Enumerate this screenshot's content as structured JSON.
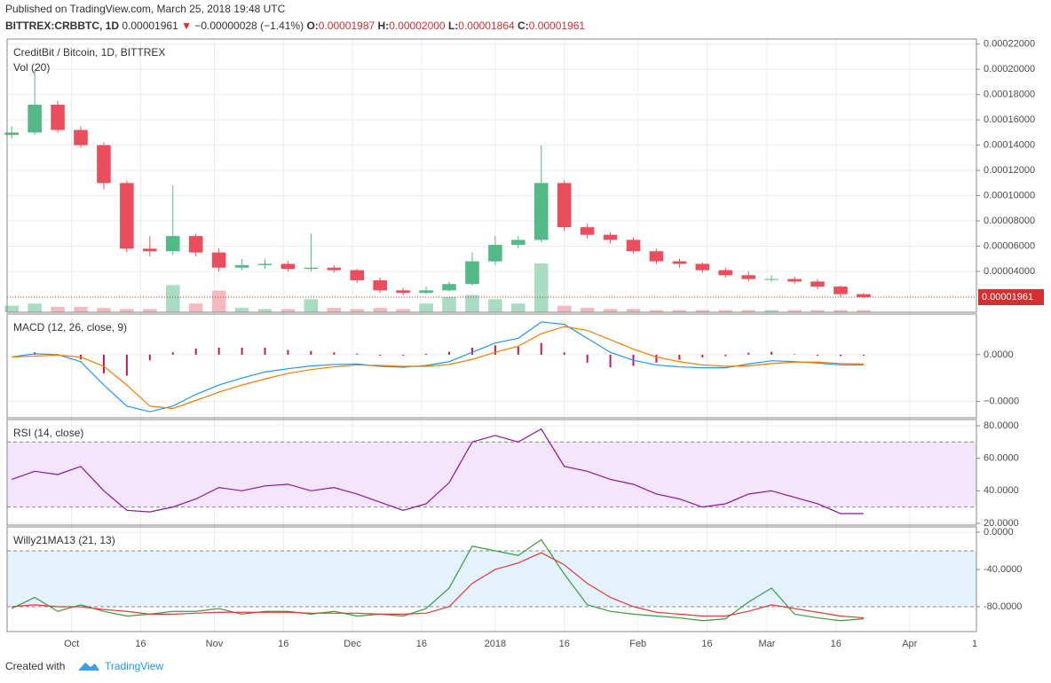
{
  "header": {
    "published": "Published on TradingView.com, March 25, 2018 19:48 UTC",
    "symbol": "BITTREX:CRBBTC, 1D",
    "last": "0.00001961",
    "arrow": "▼",
    "change": "−0.00000028 (−1.41%)",
    "ohlc": [
      {
        "label": "O:",
        "value": "0.00001987"
      },
      {
        "label": "H:",
        "value": "0.00002000"
      },
      {
        "label": "L:",
        "value": "0.00001864"
      },
      {
        "label": "C:",
        "value": "0.00001961"
      }
    ]
  },
  "footer": {
    "created": "Created with",
    "brand": "TradingView"
  },
  "chart_data": [
    {
      "type": "candlestick",
      "title": "CreditBit / Bitcoin, 1D, BITTREX",
      "subtitle": "Vol (20)",
      "x": [
        -13,
        -8,
        -3,
        2,
        7,
        12,
        17,
        22,
        27,
        32,
        37,
        42,
        47,
        52,
        57,
        62,
        67,
        72,
        77,
        82,
        87,
        92,
        97,
        102,
        107,
        112,
        117,
        122,
        127,
        132,
        137,
        142,
        147,
        152,
        157,
        162,
        167,
        172
      ],
      "xlim": [
        -14,
        196.5
      ],
      "xticks": [
        {
          "value": 0,
          "label": "Oct"
        },
        {
          "value": 15,
          "label": "16"
        },
        {
          "value": 31,
          "label": "Nov"
        },
        {
          "value": 46,
          "label": "16"
        },
        {
          "value": 61,
          "label": "Dec"
        },
        {
          "value": 76,
          "label": "16"
        },
        {
          "value": 92,
          "label": "2018"
        },
        {
          "value": 107,
          "label": "16"
        },
        {
          "value": 123,
          "label": "Feb"
        },
        {
          "value": 138,
          "label": "16"
        },
        {
          "value": 151,
          "label": "Mar"
        },
        {
          "value": 166,
          "label": "16"
        },
        {
          "value": 182,
          "label": "Apr"
        },
        {
          "value": 197,
          "label": "1"
        }
      ],
      "open": [
        0.000148,
        0.00015,
        0.000172,
        0.000152,
        0.00014,
        0.00011,
        5.8e-05,
        5.6e-05,
        6.8e-05,
        5.5e-05,
        4.3e-05,
        4.5e-05,
        4.6e-05,
        4.2e-05,
        4.3e-05,
        4.1e-05,
        3.3e-05,
        2.5e-05,
        2.3e-05,
        2.5e-05,
        3e-05,
        4.8e-05,
        6.1e-05,
        6.5e-05,
        0.00011,
        7.5e-05,
        6.9e-05,
        6.5e-05,
        5.6e-05,
        4.8e-05,
        4.6e-05,
        4.1e-05,
        3.7e-05,
        3.4e-05,
        3.4e-05,
        3.2e-05,
        2.8e-05,
        2.2e-05
      ],
      "high": [
        0.000155,
        0.0002,
        0.000175,
        0.000155,
        0.000142,
        0.000112,
        6.8e-05,
        0.000108,
        7e-05,
        5.8e-05,
        5e-05,
        5e-05,
        4.8e-05,
        7e-05,
        4.5e-05,
        4.2e-05,
        3.5e-05,
        2.7e-05,
        2.8e-05,
        3.2e-05,
        5.5e-05,
        6.8e-05,
        6.8e-05,
        0.00014,
        0.000112,
        7.8e-05,
        7.1e-05,
        6.7e-05,
        5.8e-05,
        5e-05,
        4.7e-05,
        4.3e-05,
        4e-05,
        3.7e-05,
        3.6e-05,
        3.4e-05,
        2.9e-05,
        2.3e-05
      ],
      "low": [
        0.000145,
        0.000148,
        0.00015,
        0.000138,
        0.000105,
        5.5e-05,
        5.2e-05,
        5.3e-05,
        5.2e-05,
        4e-05,
        4.1e-05,
        4.2e-05,
        4e-05,
        4e-05,
        3.9e-05,
        3.1e-05,
        2.3e-05,
        2.1e-05,
        2.2e-05,
        2.4e-05,
        2.9e-05,
        4.5e-05,
        5.8e-05,
        6.3e-05,
        7.2e-05,
        6.6e-05,
        6.2e-05,
        5.4e-05,
        4.6e-05,
        4.3e-05,
        3.9e-05,
        3.5e-05,
        3.2e-05,
        3.2e-05,
        3e-05,
        2.6e-05,
        2e-05,
        1.864e-05
      ],
      "close": [
        0.00015,
        0.000172,
        0.000152,
        0.00014,
        0.00011,
        5.8e-05,
        5.6e-05,
        6.8e-05,
        5.5e-05,
        4.3e-05,
        4.5e-05,
        4.6e-05,
        4.2e-05,
        4.3e-05,
        4.1e-05,
        3.3e-05,
        2.5e-05,
        2.3e-05,
        2.5e-05,
        3e-05,
        4.8e-05,
        6.1e-05,
        6.5e-05,
        0.00011,
        7.5e-05,
        6.9e-05,
        6.5e-05,
        5.6e-05,
        4.8e-05,
        4.6e-05,
        4.1e-05,
        3.7e-05,
        3.4e-05,
        3.4e-05,
        3.2e-05,
        2.8e-05,
        2.2e-05,
        1.961e-05
      ],
      "volume": [
        6,
        8,
        5,
        5,
        4,
        3,
        3,
        25,
        8,
        20,
        4,
        3,
        3,
        12,
        4,
        3,
        4,
        3,
        8,
        14,
        16,
        12,
        8,
        45,
        6,
        4,
        3,
        3,
        2,
        2,
        2,
        2,
        2,
        2,
        2,
        2,
        2,
        2
      ],
      "up_color": "#53b987",
      "down_color": "#eb4d5c",
      "up_volume_color": "#a9dcc3",
      "down_volume_color": "#f5b9bf",
      "ylim": [
        7.7e-06,
        0.000224
      ],
      "yticks": [
        {
          "value": 4e-05,
          "label": "0.00004000"
        },
        {
          "value": 6e-05,
          "label": "0.00006000"
        },
        {
          "value": 8e-05,
          "label": "0.00008000"
        },
        {
          "value": 0.0001,
          "label": "0.00010000"
        },
        {
          "value": 0.00012,
          "label": "0.00012000"
        },
        {
          "value": 0.00014,
          "label": "0.00014000"
        },
        {
          "value": 0.00016,
          "label": "0.00016000"
        },
        {
          "value": 0.00018,
          "label": "0.00018000"
        },
        {
          "value": 0.0002,
          "label": "0.00020000"
        },
        {
          "value": 0.00022,
          "label": "0.00022000"
        }
      ],
      "last_price": {
        "value": 1.961e-05,
        "label": "0.00001961"
      },
      "grid": true
    },
    {
      "type": "line",
      "title": "MACD (12, 26, close, 9)",
      "series": [
        {
          "name": "MACD",
          "color": "#2196f3",
          "values": [
            -5e-07,
            2e-07,
            0.0,
            -1.5e-06,
            -6.5e-06,
            -1.1e-05,
            -1.22e-05,
            -1.1e-05,
            -8.5e-06,
            -6.5e-06,
            -5e-06,
            -3.7e-06,
            -3e-06,
            -2.4e-06,
            -2.1e-06,
            -2e-06,
            -2.5e-06,
            -2.7e-06,
            -2.3e-06,
            -1.5e-06,
            5e-07,
            2.5e-06,
            3.5e-06,
            7e-06,
            6.5e-06,
            3.5e-06,
            5e-07,
            -1.2e-06,
            -2.2e-06,
            -2.6e-06,
            -2.8e-06,
            -2.8e-06,
            -2e-06,
            -1.3e-06,
            -1.5e-06,
            -1.8e-06,
            -2.2e-06,
            -2.2e-06
          ]
        },
        {
          "name": "Signal",
          "color": "#f57c00",
          "values": [
            -5e-07,
            -3e-07,
            -1e-07,
            -5e-07,
            -2.5e-06,
            -6.5e-06,
            -1.1e-05,
            -1.15e-05,
            -9.8e-06,
            -8e-06,
            -6.5e-06,
            -5.2e-06,
            -4e-06,
            -3.2e-06,
            -2.6e-06,
            -2.2e-06,
            -2.3e-06,
            -2.5e-06,
            -2.5e-06,
            -2.1e-06,
            -1e-06,
            5e-07,
            1.8e-06,
            4.5e-06,
            6e-06,
            5.2e-06,
            3.2e-06,
            1.2e-06,
            -5e-07,
            -1.5e-06,
            -2.2e-06,
            -2.5e-06,
            -2.4e-06,
            -1.9e-06,
            -1.6e-06,
            -1.6e-06,
            -1.9e-06,
            -2e-06
          ]
        }
      ],
      "histogram": {
        "color": "#c2185b",
        "values": [
          0.0,
          5e-07,
          1e-07,
          -1e-06,
          -4e-06,
          -4.5e-06,
          -1.2e-06,
          5e-07,
          1.3e-06,
          1.5e-06,
          1.5e-06,
          1.5e-06,
          1e-06,
          8e-07,
          5e-07,
          2e-07,
          -2e-07,
          -2e-07,
          2e-07,
          6e-07,
          1.5e-06,
          2e-06,
          1.7e-06,
          2.5e-06,
          5e-07,
          -1.7e-06,
          -2.7e-06,
          -2.4e-06,
          -1.7e-06,
          -1.1e-06,
          -6e-07,
          -3e-07,
          4e-07,
          6e-07,
          1e-07,
          -2e-07,
          -3e-07,
          -2e-07
        ]
      },
      "ylim": [
        -1.35e-05,
        8.7e-06
      ],
      "yticks": [
        {
          "value": -1e-05,
          "label": "−0.0000"
        },
        {
          "value": 0,
          "label": "0.0000"
        }
      ],
      "grid": true
    },
    {
      "type": "line",
      "title": "RSI (14, close)",
      "series": [
        {
          "name": "RSI",
          "color": "#8e1599",
          "values": [
            47,
            52,
            50,
            55,
            40,
            28,
            27,
            30,
            35,
            42,
            40,
            43,
            44,
            40,
            42,
            38,
            33,
            28,
            32,
            45,
            70,
            74,
            70,
            78,
            55,
            52,
            47,
            44,
            38,
            35,
            30,
            32,
            38,
            40,
            36,
            32,
            26,
            26
          ]
        }
      ],
      "bands": [
        30,
        70
      ],
      "band_color": "#f3e5fb",
      "ylim": [
        18.9,
        83.8
      ],
      "yticks": [
        {
          "value": 20,
          "label": "20.0000"
        },
        {
          "value": 40,
          "label": "40.0000"
        },
        {
          "value": 60,
          "label": "60.0000"
        },
        {
          "value": 80,
          "label": "80.0000"
        }
      ],
      "grid": true
    },
    {
      "type": "line",
      "title": "Willy21MA13 (21, 13)",
      "series": [
        {
          "name": "Willy",
          "color": "#3c9c3c",
          "values": [
            -82,
            -70,
            -85,
            -78,
            -85,
            -90,
            -88,
            -85,
            -85,
            -82,
            -88,
            -85,
            -85,
            -88,
            -85,
            -90,
            -88,
            -90,
            -82,
            -60,
            -15,
            -20,
            -25,
            -8,
            -45,
            -78,
            -85,
            -88,
            -90,
            -92,
            -95,
            -93,
            -75,
            -60,
            -88,
            -92,
            -95,
            -93
          ]
        },
        {
          "name": "MA",
          "color": "#e53935",
          "values": [
            -80,
            -78,
            -80,
            -80,
            -83,
            -85,
            -88,
            -88,
            -87,
            -86,
            -86,
            -86,
            -86,
            -87,
            -87,
            -87,
            -88,
            -88,
            -87,
            -80,
            -55,
            -40,
            -33,
            -22,
            -35,
            -55,
            -70,
            -80,
            -86,
            -88,
            -90,
            -90,
            -85,
            -78,
            -82,
            -86,
            -90,
            -92
          ]
        }
      ],
      "bands": [
        -80,
        -20
      ],
      "band_color": "#e3f2fd",
      "ylim": [
        -106.7,
        5.7
      ],
      "yticks": [
        {
          "value": -80,
          "label": "-80.0000"
        },
        {
          "value": -40,
          "label": "-40.0000"
        },
        {
          "value": 0,
          "label": "0.0000"
        }
      ],
      "grid": true
    }
  ]
}
